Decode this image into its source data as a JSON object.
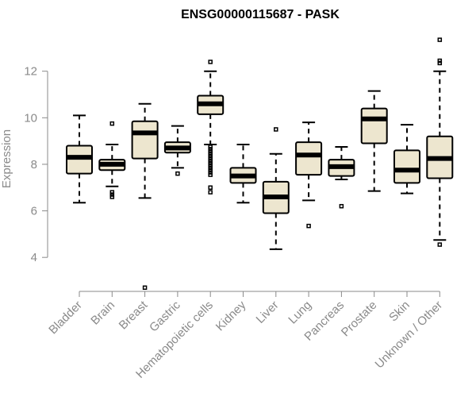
{
  "chart_data": {
    "type": "boxplot",
    "title": "ENSG00000115687 - PASK",
    "ylabel": "Expression",
    "xlabel": "",
    "ylim": [
      2.3,
      13.9
    ],
    "yticks": [
      4,
      6,
      8,
      10,
      12
    ],
    "box_color": "#ede6cf",
    "categories": [
      "Bladder",
      "Brain",
      "Breast",
      "Gastric",
      "Hematopoietic cells",
      "Kidney",
      "Liver",
      "Lung",
      "Pancreas",
      "Prostate",
      "Skin",
      "Unknown / Other"
    ],
    "boxes": [
      {
        "min": 6.35,
        "q1": 7.6,
        "median": 8.3,
        "q3": 8.8,
        "max": 10.1,
        "outliers": []
      },
      {
        "min": 7.05,
        "q1": 7.75,
        "median": 8.0,
        "q3": 8.2,
        "max": 8.85,
        "outliers": [
          9.75,
          6.8,
          6.7,
          6.6
        ]
      },
      {
        "min": 6.55,
        "q1": 8.25,
        "median": 9.35,
        "q3": 9.85,
        "max": 10.6,
        "outliers": [
          2.7
        ]
      },
      {
        "min": 7.85,
        "q1": 8.5,
        "median": 8.7,
        "q3": 8.95,
        "max": 9.65,
        "outliers": [
          7.6
        ]
      },
      {
        "min": 8.85,
        "q1": 10.15,
        "median": 10.6,
        "q3": 10.95,
        "max": 12.0,
        "outliers": [
          12.4,
          8.75,
          8.65,
          8.55,
          8.45,
          8.35,
          8.25,
          8.15,
          8.05,
          7.95,
          7.85,
          7.75,
          7.65,
          7.55,
          7.0,
          6.8
        ]
      },
      {
        "min": 6.35,
        "q1": 7.2,
        "median": 7.5,
        "q3": 7.85,
        "max": 8.85,
        "outliers": []
      },
      {
        "min": 4.35,
        "q1": 5.9,
        "median": 6.6,
        "q3": 7.25,
        "max": 8.45,
        "outliers": [
          9.5
        ]
      },
      {
        "min": 6.45,
        "q1": 7.55,
        "median": 8.4,
        "q3": 8.95,
        "max": 9.8,
        "outliers": [
          5.35
        ]
      },
      {
        "min": 7.35,
        "q1": 7.5,
        "median": 7.9,
        "q3": 8.2,
        "max": 8.75,
        "outliers": [
          6.2
        ]
      },
      {
        "min": 6.85,
        "q1": 8.9,
        "median": 9.95,
        "q3": 10.4,
        "max": 11.15,
        "outliers": []
      },
      {
        "min": 6.75,
        "q1": 7.2,
        "median": 7.75,
        "q3": 8.6,
        "max": 9.7,
        "outliers": []
      },
      {
        "min": 4.75,
        "q1": 7.4,
        "median": 8.25,
        "q3": 9.2,
        "max": 12.0,
        "outliers": [
          13.35,
          12.45,
          12.35,
          4.55
        ]
      }
    ]
  }
}
